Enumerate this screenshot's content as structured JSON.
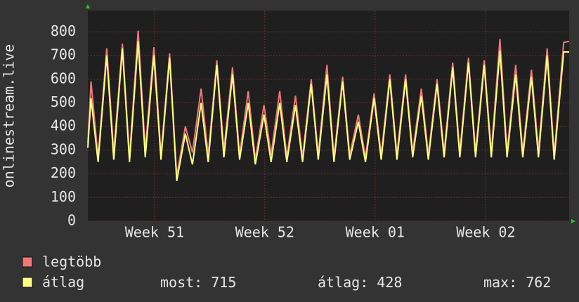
{
  "chart_data": {
    "type": "line",
    "y_label": "onlinestream.live",
    "x": [
      0,
      0.2,
      0.65,
      1.2,
      1.65,
      2.2,
      2.65,
      3.2,
      3.65,
      4.2,
      4.65,
      5.2,
      5.65,
      6.2,
      6.65,
      7.2,
      7.65,
      8.2,
      8.65,
      9.2,
      9.65,
      10.2,
      10.65,
      11.2,
      11.65,
      12.2,
      12.65,
      13.2,
      13.65,
      14.2,
      14.65,
      15.2,
      15.65,
      16.2,
      16.65,
      17.2,
      17.65,
      18.2,
      18.65,
      19.2,
      19.65,
      20.2,
      20.65,
      21.2,
      21.65,
      22.2,
      22.65,
      23.2,
      23.65,
      24.2,
      24.65,
      25.2,
      25.65,
      26.2,
      26.65,
      27.2,
      27.65,
      28.2,
      28.65,
      29.2,
      29.65,
      30.25,
      30.6
    ],
    "series": [
      {
        "name": "legtöbb",
        "color": "#f07878",
        "values": [
          330,
          590,
          270,
          730,
          290,
          750,
          270,
          805,
          300,
          735,
          280,
          710,
          190,
          400,
          290,
          560,
          280,
          680,
          300,
          650,
          280,
          550,
          260,
          490,
          280,
          550,
          270,
          530,
          270,
          600,
          280,
          660,
          270,
          610,
          280,
          450,
          270,
          540,
          280,
          620,
          280,
          620,
          290,
          560,
          280,
          600,
          290,
          670,
          290,
          690,
          290,
          680,
          290,
          770,
          290,
          660,
          290,
          640,
          300,
          730,
          280,
          755,
          760
        ]
      },
      {
        "name": "átlag",
        "color": "#ffff80",
        "values": [
          310,
          520,
          250,
          700,
          260,
          730,
          250,
          760,
          270,
          700,
          260,
          690,
          170,
          370,
          240,
          500,
          250,
          660,
          270,
          620,
          260,
          500,
          240,
          450,
          250,
          500,
          250,
          490,
          250,
          580,
          260,
          620,
          250,
          590,
          260,
          420,
          250,
          520,
          260,
          600,
          260,
          600,
          270,
          530,
          260,
          580,
          270,
          650,
          270,
          670,
          270,
          660,
          270,
          720,
          270,
          620,
          270,
          610,
          270,
          700,
          260,
          715,
          715
        ]
      }
    ],
    "xlim": [
      0,
      30.6
    ],
    "xticks": [
      {
        "value": 4.24,
        "label": "Week 51"
      },
      {
        "value": 11.25,
        "label": "Week 52"
      },
      {
        "value": 18.26,
        "label": "Week 01"
      },
      {
        "value": 25.3,
        "label": "Week 02"
      }
    ],
    "ylim": [
      0,
      890
    ],
    "yticks": [
      0,
      100,
      200,
      300,
      400,
      500,
      600,
      700,
      800
    ],
    "grid": true,
    "stats": [
      {
        "label": "most:",
        "value": 715
      },
      {
        "label": "átlag:",
        "value": 428
      },
      {
        "label": "max:",
        "value": 762
      }
    ]
  }
}
